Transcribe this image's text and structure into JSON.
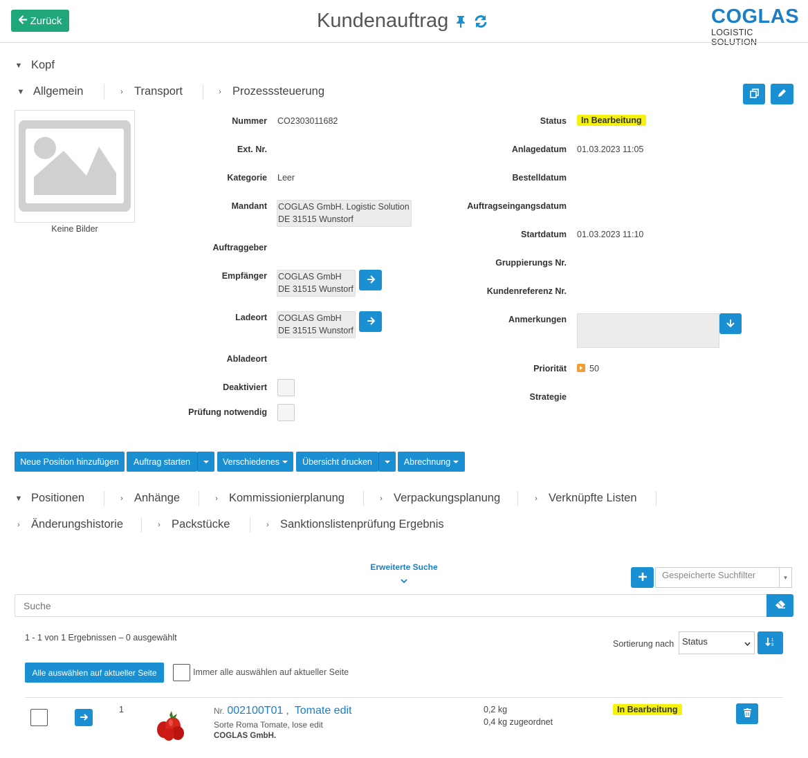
{
  "header": {
    "back_label": "Zurück",
    "title": "Kundenauftrag",
    "logo_main": "COGLAS",
    "logo_sub": "LOGISTIC SOLUTION"
  },
  "sections": {
    "kopf": "Kopf",
    "tabs1": [
      "Allgemein",
      "Transport",
      "Prozesssteuerung"
    ]
  },
  "image": {
    "no_images": "Keine Bilder"
  },
  "left_fields": {
    "nummer_label": "Nummer",
    "nummer": "CO2303011682",
    "extnr_label": "Ext. Nr.",
    "kategorie_label": "Kategorie",
    "kategorie": "Leer",
    "mandant_label": "Mandant",
    "mandant_l1": "COGLAS GmbH. Logistic Solution",
    "mandant_l2": "DE 31515 Wunstorf",
    "auftraggeber_label": "Auftraggeber",
    "empfaenger_label": "Empfänger",
    "empfaenger_l1": "COGLAS GmbH",
    "empfaenger_l2": "DE 31515 Wunstorf",
    "ladeort_label": "Ladeort",
    "ladeort_l1": "COGLAS GmbH",
    "ladeort_l2": "DE 31515 Wunstorf",
    "abladeort_label": "Abladeort",
    "deaktiviert_label": "Deaktiviert",
    "pruefung_label": "Prüfung notwendig"
  },
  "right_fields": {
    "status_label": "Status",
    "status": "In Bearbeitung",
    "anlagedatum_label": "Anlagedatum",
    "anlagedatum": "01.03.2023 11:05",
    "bestelldatum_label": "Bestelldatum",
    "auftragseingang_label": "Auftragseingangsdatum",
    "startdatum_label": "Startdatum",
    "startdatum": "01.03.2023 11:10",
    "gruppierung_label": "Gruppierungs Nr.",
    "kundenreferenz_label": "Kundenreferenz Nr.",
    "anmerkungen_label": "Anmerkungen",
    "prioritaet_label": "Priorität",
    "prioritaet": "50",
    "strategie_label": "Strategie"
  },
  "actions": [
    "Neue Position hinzufügen",
    "Auftrag starten",
    "Verschiedenes",
    "Übersicht drucken",
    "Abrechnung"
  ],
  "tabs2_row1": [
    "Positionen",
    "Anhänge",
    "Kommissionierplanung",
    "Verpackungsplanung",
    "Verknüpfte Listen"
  ],
  "tabs2_row2": [
    "Änderungshistorie",
    "Packstücke",
    "Sanktionslistenprüfung Ergebnis"
  ],
  "search": {
    "advanced": "Erweiterte Suche",
    "saved_filter_placeholder": "Gespeicherte Suchfilter",
    "placeholder": "Suche"
  },
  "results": {
    "summary": "1 - 1 von 1 Ergebnissen  –  0 ausgewählt",
    "sort_label": "Sortierung nach",
    "sort_value": "Status",
    "select_all_btn": "Alle auswählen auf aktueller Seite",
    "always_select_label": "Immer alle auswählen auf aktueller Seite"
  },
  "item": {
    "index": "1",
    "nr_prefix": "Nr.",
    "nr": "002100T01",
    "name": "Tomate edit",
    "desc": "Sorte Roma Tomate, lose edit",
    "company": "COGLAS GmbH.",
    "weight": "0,2 kg",
    "assigned": "0,4 kg zugeordnet",
    "status": "In Bearbeitung"
  },
  "colors": {
    "accent": "#1a8fd2",
    "back_green": "#1fa67a",
    "status_yellow": "#f5f20f",
    "logo_blue": "#1a7fc6"
  }
}
